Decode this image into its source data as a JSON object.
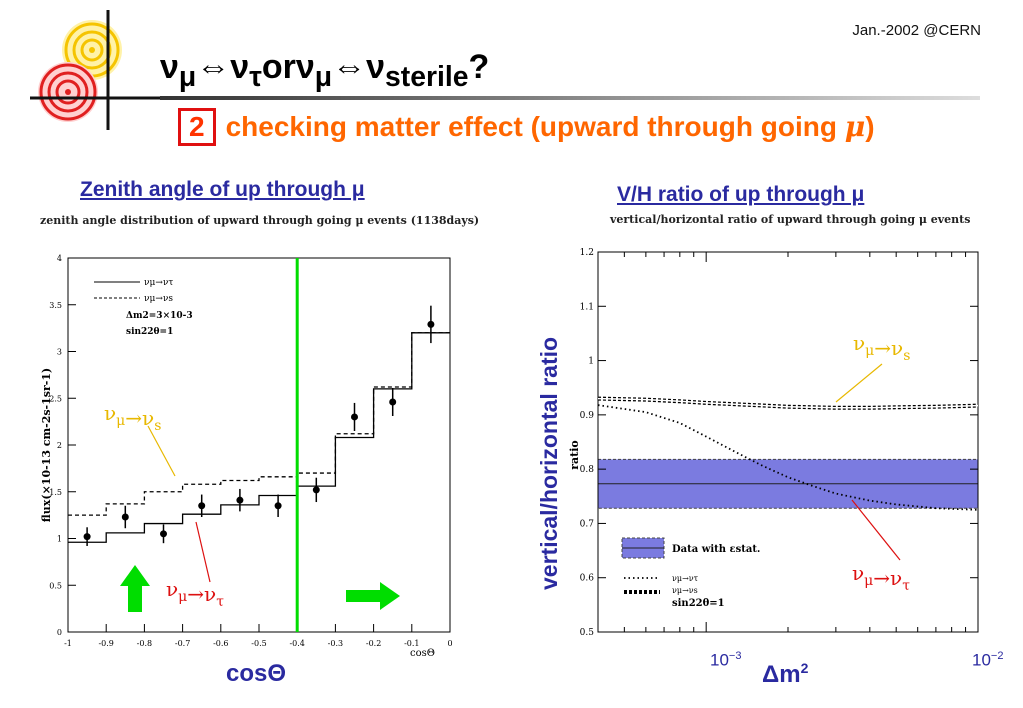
{
  "header": {
    "date": "Jan.-2002 @CERN",
    "title_html": "ν<sub>μ</sub>⇔ν<sub>τ</sub>orν<sub>μ</sub>⇔ν<sub>sterile</sub>?",
    "number_box": "2",
    "subtitle_text": "checking matter effect (upward through going ",
    "subtitle_mu": "μ",
    "subtitle_end": ")"
  },
  "colors": {
    "orange": "#ff6600",
    "blue_text": "#2a2aa0",
    "band": "#7b7be0",
    "green": "#00dd00",
    "annot_red": "#dd1111",
    "annot_yellow": "#e8b800"
  },
  "left_panel": {
    "heading": "Zenith angle of up through μ",
    "subheading": "zenith angle distribution of upward through going μ events (1138days)",
    "x_caption": "cosΘ",
    "annot_s": "νμ→νs",
    "annot_t": "νμ→ντ"
  },
  "right_panel": {
    "heading": "V/H ratio of up through μ",
    "subheading": "vertical/horizontal ratio of upward through going μ events",
    "y_caption": "vertical/horizontal ratio",
    "annot_s": "νμ→νs",
    "annot_t": "νμ→ντ",
    "x_tick_low": "10−3",
    "x_tick_high": "10−2",
    "x_caption": "Δm2"
  },
  "chart_data": [
    {
      "type": "line",
      "title": "zenith angle distribution of upward through going μ events (1138days)",
      "xlabel": "cosΘ",
      "ylabel": "flux(×10-13 cm-2s-1sr-1)",
      "xlim": [
        -1,
        0
      ],
      "ylim": [
        0,
        4
      ],
      "x_ticks": [
        "-1",
        "-0.9",
        "-0.8",
        "-0.7",
        "-0.6",
        "-0.5",
        "-0.4",
        "-0.3",
        "-0.2",
        "-0.1",
        "0"
      ],
      "y_ticks": [
        "0",
        "0.5",
        "1",
        "1.5",
        "2",
        "2.5",
        "3",
        "3.5",
        "4"
      ],
      "legend": [
        "νμ→ντ",
        "νμ→νs",
        "Δm2=3×10-3",
        "sin22θ=1"
      ],
      "bin_edges": [
        -1,
        -0.9,
        -0.8,
        -0.7,
        -0.6,
        -0.5,
        -0.4,
        -0.3,
        -0.2,
        -0.1,
        0
      ],
      "series": [
        {
          "name": "νμ→ντ",
          "style": "solid",
          "values": [
            0.96,
            1.06,
            1.16,
            1.26,
            1.36,
            1.46,
            1.56,
            2.08,
            2.6,
            3.2
          ]
        },
        {
          "name": "νμ→νs",
          "style": "dashed",
          "values": [
            1.25,
            1.37,
            1.5,
            1.58,
            1.62,
            1.66,
            1.7,
            2.12,
            2.62,
            3.2
          ]
        }
      ],
      "data_points": {
        "x": [
          -0.95,
          -0.85,
          -0.75,
          -0.65,
          -0.55,
          -0.45,
          -0.35,
          -0.25,
          -0.15,
          -0.05
        ],
        "y": [
          1.02,
          1.23,
          1.05,
          1.35,
          1.41,
          1.35,
          1.52,
          2.3,
          2.46,
          3.29
        ],
        "err": [
          0.1,
          0.12,
          0.1,
          0.12,
          0.12,
          0.12,
          0.13,
          0.15,
          0.15,
          0.2
        ]
      },
      "cut_line_x": -0.4
    },
    {
      "type": "line",
      "title": "vertical/horizontal ratio of upward through going μ events",
      "ylabel": "ratio",
      "y_ticks": [
        "0.5",
        "0.6",
        "0.7",
        "0.8",
        "0.9",
        "1",
        "1.1",
        "1.2"
      ],
      "ylim": [
        0.5,
        1.2
      ],
      "x_scale": "log",
      "xlim": [
        0.0004,
        0.01
      ],
      "legend": [
        "Data with εstat.",
        "νμ→ντ",
        "νμ→νs",
        "sin22θ=1"
      ],
      "data_band": {
        "center": 0.773,
        "low": 0.728,
        "high": 0.818
      },
      "series": [
        {
          "name": "νμ→ντ",
          "style": "dotted",
          "x": [
            0.0004,
            0.0006,
            0.0008,
            0.001,
            0.0013,
            0.0016,
            0.002,
            0.0025,
            0.003,
            0.004,
            0.005,
            0.007,
            0.01
          ],
          "y": [
            0.918,
            0.905,
            0.885,
            0.86,
            0.83,
            0.807,
            0.785,
            0.768,
            0.755,
            0.742,
            0.735,
            0.728,
            0.725
          ]
        },
        {
          "name": "νμ→νs",
          "style": "dashed-double",
          "x": [
            0.0004,
            0.0006,
            0.0008,
            0.001,
            0.0015,
            0.002,
            0.003,
            0.004,
            0.005,
            0.007,
            0.01
          ],
          "y": [
            0.93,
            0.928,
            0.925,
            0.922,
            0.918,
            0.915,
            0.913,
            0.913,
            0.914,
            0.915,
            0.917
          ]
        }
      ]
    }
  ]
}
